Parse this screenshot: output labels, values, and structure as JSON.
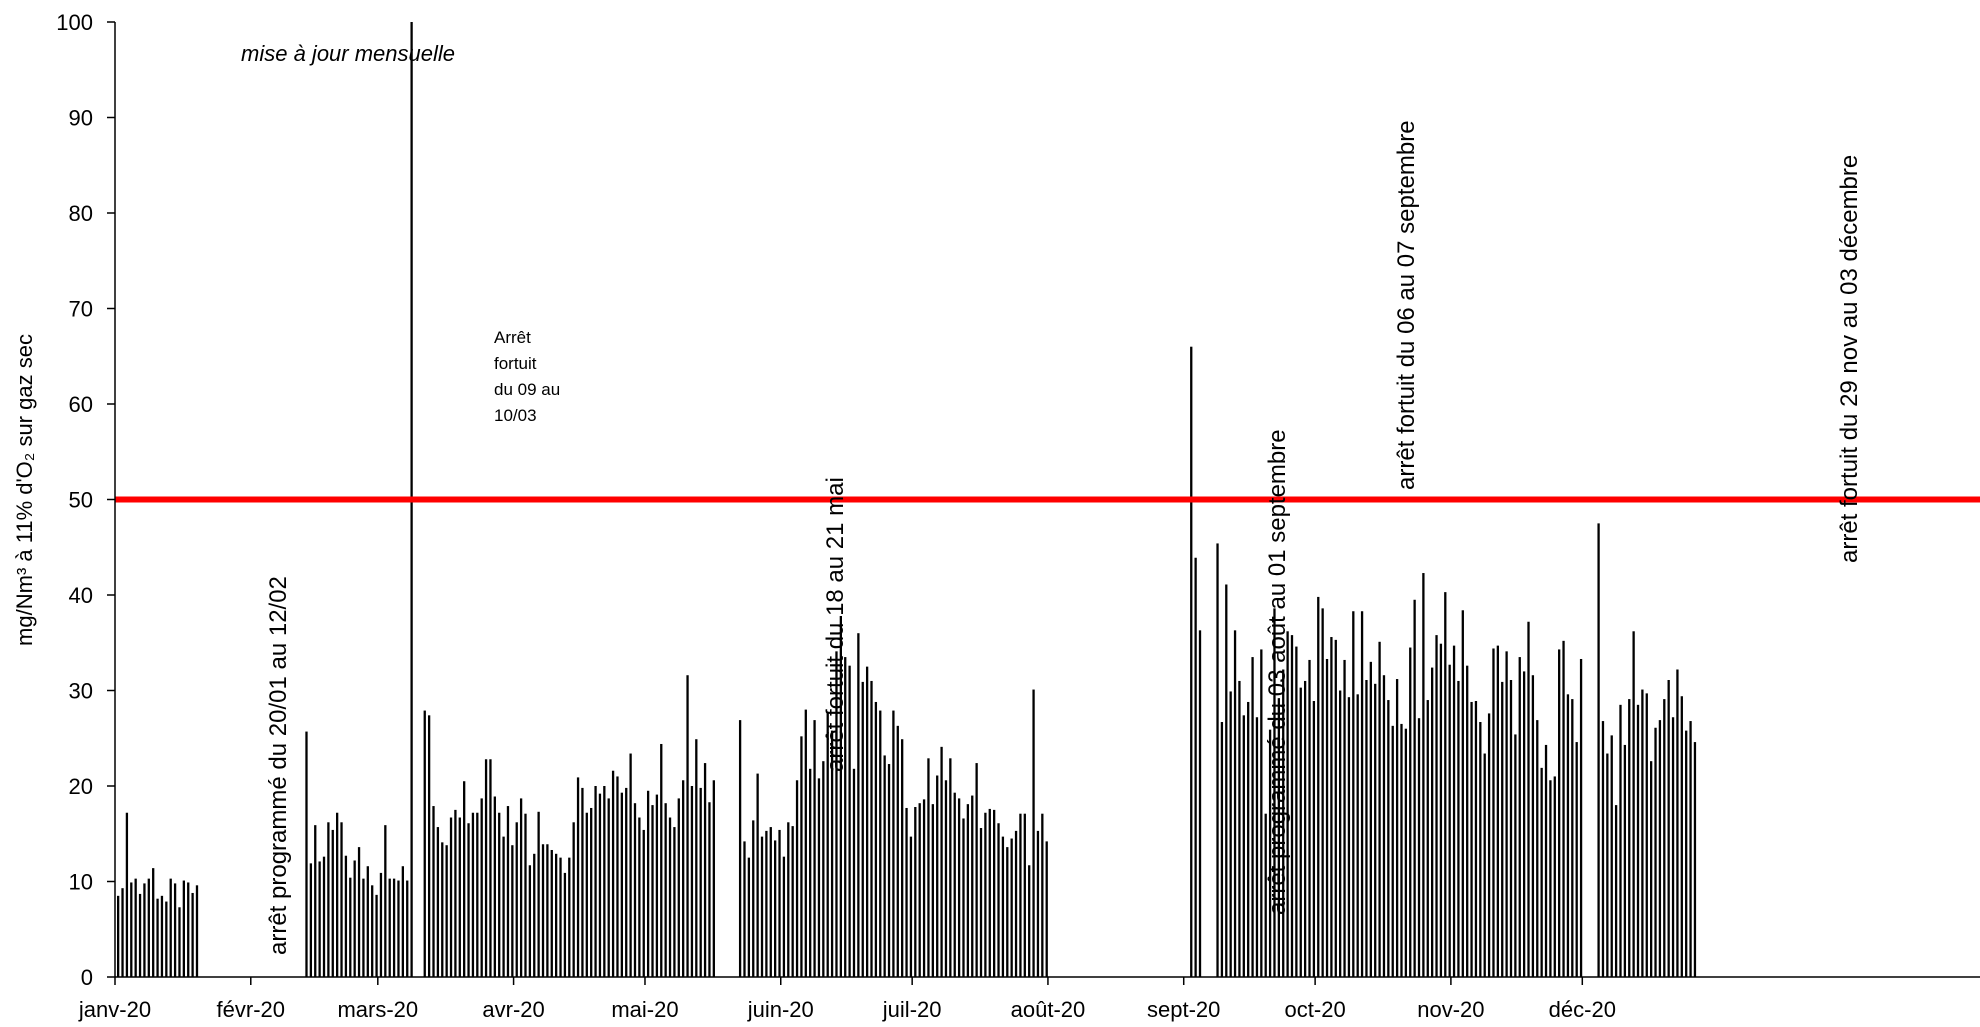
{
  "chart_data": {
    "type": "bar",
    "ylabel": "mg/Nm³ à 11% d'O₂ sur gaz sec",
    "ylim": [
      0,
      100
    ],
    "yticks": [
      0,
      10,
      20,
      30,
      40,
      50,
      60,
      70,
      80,
      90,
      100
    ],
    "x_month_labels": [
      "janv-20",
      "févr-20",
      "mars-20",
      "avr-20",
      "mai-20",
      "juin-20",
      "juil-20",
      "août-20",
      "sept-20",
      "oct-20",
      "nov-20",
      "déc-20"
    ],
    "limit": {
      "value": 50,
      "color": "#ff0000"
    },
    "bar_color": "#000000",
    "series": [
      {
        "start": "2020-01-01",
        "values": [
          8.5,
          9.3,
          17.2,
          9.9,
          10.3,
          8.7,
          9.8,
          10.3,
          11.4,
          8.2,
          8.5,
          7.9,
          10.3,
          9.8,
          7.3,
          10.1,
          9.9,
          8.8,
          9.6
        ]
      },
      {
        "start": "2020-02-13",
        "values": [
          25.7,
          11.9,
          15.9,
          12.1,
          12.6,
          16.2,
          15.4,
          17.2,
          16.2,
          12.7,
          10.4,
          12.2,
          13.6,
          10.3,
          11.6,
          9.6,
          8.6,
          10.9,
          15.9,
          10.3,
          10.3,
          10.1,
          11.6,
          10.1,
          100
        ]
      },
      {
        "start": "2020-03-11",
        "values": [
          27.9,
          27.4,
          17.9,
          15.7,
          14.1,
          13.8,
          16.7,
          17.5,
          16.7,
          20.5,
          16.1,
          17.2,
          17.2,
          18.7,
          22.8,
          22.8,
          18.9,
          17.2,
          14.7,
          17.9,
          13.8,
          16.2,
          18.7,
          17.1,
          11.7,
          12.9,
          17.3,
          13.9,
          13.9,
          13.3,
          12.9,
          12.5,
          10.9,
          12.5,
          16.2,
          20.9,
          19.8,
          17.2,
          17.7,
          20.0,
          19.2,
          20.0,
          18.7,
          21.6,
          21.0,
          19.3,
          19.8,
          23.4,
          18.2,
          16.7,
          15.4,
          19.5,
          18.0,
          19.1,
          24.4,
          18.2,
          16.7,
          15.7,
          18.7,
          20.6,
          31.6,
          20.0,
          24.9,
          19.8,
          22.4,
          18.3,
          20.6
        ]
      },
      {
        "start": "2020-05-22",
        "values": [
          26.9,
          14.2,
          12.5,
          16.4,
          21.3,
          14.7,
          15.3,
          15.7,
          14.3,
          15.4,
          12.6,
          16.2,
          15.8,
          20.6,
          25.2,
          28.0,
          21.8,
          26.9,
          20.8,
          22.6,
          27.6,
          25.8,
          34.1,
          37.8,
          33.5,
          32.6,
          21.8,
          36.0,
          30.9,
          32.5,
          31.0,
          28.8,
          27.9,
          23.2,
          22.3,
          27.9,
          26.3,
          24.9,
          17.7,
          14.7,
          17.8,
          18.2,
          18.6,
          22.9,
          18.1,
          21.1,
          24.1,
          20.6,
          22.9,
          19.3,
          18.7,
          16.6,
          18.1,
          19.0,
          22.4,
          15.6,
          17.2,
          17.6,
          17.5,
          16.1,
          14.7,
          13.6,
          14.5,
          15.3,
          17.1,
          17.1,
          11.7,
          30.1,
          15.3,
          17.1,
          14.2
        ]
      },
      {
        "start": "2020-09-02",
        "values": [
          66.0,
          43.9,
          36.3
        ]
      },
      {
        "start": "2020-09-08",
        "values": [
          45.4,
          26.7,
          41.1,
          29.9,
          36.3,
          31.0,
          27.4,
          28.8,
          33.5,
          27.2,
          34.3,
          17.1,
          25.9,
          38.6,
          29.2,
          32.2,
          36.2,
          35.8,
          34.6,
          30.3,
          31.0,
          33.2,
          28.9,
          39.8,
          38.6,
          33.3,
          35.6,
          35.3,
          30.0,
          33.2,
          29.3,
          38.3,
          29.6,
          38.3,
          31.1,
          33.0,
          30.7,
          35.1,
          31.6,
          29.0,
          26.3,
          31.2,
          26.5,
          26.0,
          34.5,
          39.5,
          27.1,
          42.3,
          29.0,
          32.4,
          35.8,
          34.9,
          40.3,
          32.7,
          34.7,
          31.0,
          38.4,
          32.6,
          28.8,
          28.9,
          26.7,
          23.4,
          27.6,
          34.4,
          34.7,
          30.9,
          34.1,
          31.1,
          25.4,
          33.5,
          32.0,
          37.2,
          31.6,
          26.9,
          21.9,
          24.3,
          20.6,
          21.0,
          34.3,
          35.2,
          29.6,
          29.1,
          24.6,
          33.3
        ]
      },
      {
        "start": "2020-12-04",
        "values": [
          47.5,
          26.8,
          23.4,
          25.3,
          18.0,
          28.5,
          24.3,
          29.1,
          36.2,
          28.5,
          30.1,
          29.7,
          22.6,
          26.1,
          26.9,
          29.1,
          31.1,
          27.2,
          32.2,
          29.4,
          25.8,
          26.8,
          24.6
        ]
      }
    ],
    "annotations": [
      {
        "text": "mise à jour mensuelle",
        "style": "italic"
      },
      {
        "text": "arrêt programmé du 20/01 au 12/02",
        "style": "vertical"
      },
      {
        "lines": [
          "Arrêt",
          "fortuit",
          "du 09 au",
          "10/03"
        ],
        "style": "small"
      },
      {
        "text": "arrêt fortuit du 18 au 21 mai",
        "style": "vertical"
      },
      {
        "text": "arrêt programmé du 03 août au 01 septembre",
        "style": "vertical"
      },
      {
        "text": "arrêt fortuit du 06 au 07 septembre",
        "style": "vertical"
      },
      {
        "text": "arrêt fortuit du 29 nov  au 03 décembre",
        "style": "vertical"
      }
    ]
  }
}
